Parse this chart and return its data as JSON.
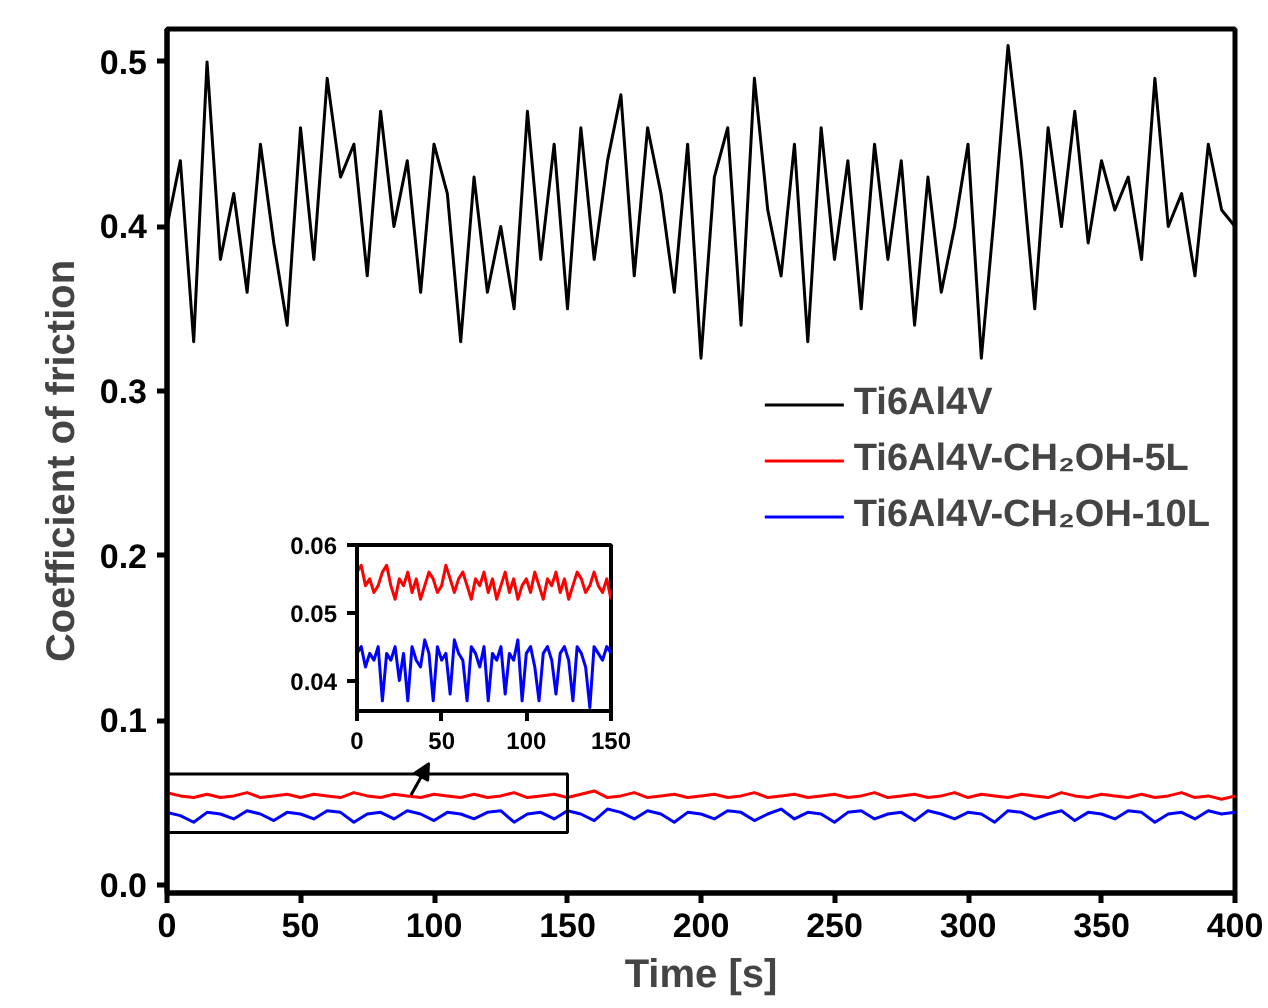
{
  "chart_data": [
    {
      "type": "line",
      "xlabel": "Time [s]",
      "ylabel": "Coefficient of friction",
      "xlim": [
        0,
        400
      ],
      "ylim": [
        -0.005,
        0.52
      ],
      "xticks": [
        0,
        50,
        100,
        150,
        200,
        250,
        300,
        350,
        400
      ],
      "yticks": [
        {
          "value": 0,
          "label": "0.0"
        },
        0.1,
        0.2,
        0.3,
        0.4,
        0.5
      ],
      "legend": "right",
      "x": [
        0,
        5,
        10,
        15,
        20,
        25,
        30,
        35,
        40,
        45,
        50,
        55,
        60,
        65,
        70,
        75,
        80,
        85,
        90,
        95,
        100,
        105,
        110,
        115,
        120,
        125,
        130,
        135,
        140,
        145,
        150,
        155,
        160,
        165,
        170,
        175,
        180,
        185,
        190,
        195,
        200,
        205,
        210,
        215,
        220,
        225,
        230,
        235,
        240,
        245,
        250,
        255,
        260,
        265,
        270,
        275,
        280,
        285,
        290,
        295,
        300,
        305,
        310,
        315,
        320,
        325,
        330,
        335,
        340,
        345,
        350,
        355,
        360,
        365,
        370,
        375,
        380,
        385,
        390,
        395,
        400
      ],
      "series": [
        {
          "name": "Ti6Al4V",
          "color": "#000000",
          "values": [
            0.4,
            0.44,
            0.33,
            0.5,
            0.38,
            0.42,
            0.36,
            0.45,
            0.39,
            0.34,
            0.46,
            0.38,
            0.49,
            0.43,
            0.45,
            0.37,
            0.47,
            0.4,
            0.44,
            0.36,
            0.45,
            0.42,
            0.33,
            0.43,
            0.36,
            0.4,
            0.35,
            0.47,
            0.38,
            0.45,
            0.35,
            0.46,
            0.38,
            0.44,
            0.48,
            0.37,
            0.46,
            0.42,
            0.36,
            0.45,
            0.32,
            0.43,
            0.46,
            0.34,
            0.49,
            0.41,
            0.37,
            0.45,
            0.33,
            0.46,
            0.38,
            0.44,
            0.35,
            0.45,
            0.38,
            0.44,
            0.34,
            0.43,
            0.36,
            0.4,
            0.45,
            0.32,
            0.41,
            0.51,
            0.44,
            0.35,
            0.46,
            0.4,
            0.47,
            0.39,
            0.44,
            0.41,
            0.43,
            0.38,
            0.49,
            0.4,
            0.42,
            0.37,
            0.45,
            0.41,
            0.4
          ]
        },
        {
          "name": "Ti6Al4V-CH₂OH-5L",
          "color": "#ff0000",
          "values": [
            0.056,
            0.054,
            0.053,
            0.055,
            0.053,
            0.054,
            0.056,
            0.053,
            0.054,
            0.055,
            0.053,
            0.055,
            0.054,
            0.053,
            0.056,
            0.054,
            0.053,
            0.055,
            0.054,
            0.053,
            0.055,
            0.054,
            0.053,
            0.055,
            0.053,
            0.054,
            0.056,
            0.053,
            0.054,
            0.055,
            0.053,
            0.055,
            0.057,
            0.053,
            0.054,
            0.056,
            0.053,
            0.054,
            0.055,
            0.053,
            0.054,
            0.055,
            0.053,
            0.054,
            0.056,
            0.053,
            0.054,
            0.055,
            0.053,
            0.054,
            0.055,
            0.053,
            0.054,
            0.056,
            0.053,
            0.054,
            0.055,
            0.053,
            0.054,
            0.056,
            0.053,
            0.055,
            0.054,
            0.053,
            0.055,
            0.054,
            0.053,
            0.056,
            0.054,
            0.053,
            0.055,
            0.054,
            0.053,
            0.055,
            0.053,
            0.054,
            0.056,
            0.053,
            0.054,
            0.052,
            0.054
          ]
        },
        {
          "name": "Ti6Al4V-CH₂OH-10L",
          "color": "#0000ff",
          "values": [
            0.044,
            0.042,
            0.038,
            0.044,
            0.043,
            0.04,
            0.045,
            0.043,
            0.039,
            0.044,
            0.043,
            0.04,
            0.045,
            0.044,
            0.038,
            0.043,
            0.044,
            0.04,
            0.045,
            0.043,
            0.039,
            0.044,
            0.043,
            0.04,
            0.044,
            0.045,
            0.038,
            0.043,
            0.044,
            0.04,
            0.045,
            0.043,
            0.039,
            0.046,
            0.044,
            0.04,
            0.045,
            0.043,
            0.038,
            0.044,
            0.043,
            0.04,
            0.045,
            0.044,
            0.039,
            0.043,
            0.046,
            0.04,
            0.044,
            0.043,
            0.038,
            0.044,
            0.045,
            0.04,
            0.043,
            0.044,
            0.039,
            0.045,
            0.043,
            0.04,
            0.044,
            0.043,
            0.038,
            0.045,
            0.044,
            0.04,
            0.043,
            0.045,
            0.039,
            0.044,
            0.043,
            0.04,
            0.045,
            0.044,
            0.038,
            0.043,
            0.044,
            0.04,
            0.045,
            0.043,
            0.044
          ]
        }
      ]
    },
    {
      "type": "line",
      "xlim": [
        0,
        150
      ],
      "ylim": [
        0.0355,
        0.06
      ],
      "xticks": [
        0,
        50,
        100,
        150
      ],
      "yticks": [
        0.04,
        0.05,
        0.06
      ],
      "x": [
        0,
        2.5,
        5,
        7.5,
        10,
        12.5,
        15,
        17.5,
        20,
        22.5,
        25,
        27.5,
        30,
        32.5,
        35,
        37.5,
        40,
        42.5,
        45,
        47.5,
        50,
        52.5,
        55,
        57.5,
        60,
        62.5,
        65,
        67.5,
        70,
        72.5,
        75,
        77.5,
        80,
        82.5,
        85,
        87.5,
        90,
        92.5,
        95,
        97.5,
        100,
        102.5,
        105,
        107.5,
        110,
        112.5,
        115,
        117.5,
        120,
        122.5,
        125,
        127.5,
        130,
        132.5,
        135,
        137.5,
        140,
        142.5,
        145,
        147.5,
        150
      ],
      "series": [
        {
          "color": "#ff0000",
          "values": [
            0.056,
            0.057,
            0.054,
            0.055,
            0.053,
            0.054,
            0.056,
            0.057,
            0.054,
            0.052,
            0.055,
            0.054,
            0.056,
            0.053,
            0.055,
            0.052,
            0.054,
            0.056,
            0.055,
            0.053,
            0.054,
            0.057,
            0.055,
            0.053,
            0.055,
            0.056,
            0.054,
            0.052,
            0.055,
            0.054,
            0.056,
            0.053,
            0.055,
            0.052,
            0.054,
            0.056,
            0.053,
            0.055,
            0.052,
            0.054,
            0.055,
            0.053,
            0.056,
            0.054,
            0.052,
            0.055,
            0.054,
            0.056,
            0.053,
            0.055,
            0.052,
            0.054,
            0.056,
            0.055,
            0.053,
            0.054,
            0.056,
            0.054,
            0.053,
            0.055,
            0.052
          ]
        },
        {
          "color": "#0000ff",
          "values": [
            0.044,
            0.045,
            0.042,
            0.044,
            0.043,
            0.045,
            0.037,
            0.044,
            0.043,
            0.045,
            0.04,
            0.044,
            0.037,
            0.045,
            0.043,
            0.042,
            0.046,
            0.044,
            0.037,
            0.045,
            0.043,
            0.044,
            0.038,
            0.046,
            0.044,
            0.043,
            0.037,
            0.045,
            0.044,
            0.042,
            0.045,
            0.037,
            0.044,
            0.043,
            0.045,
            0.038,
            0.044,
            0.043,
            0.046,
            0.037,
            0.044,
            0.045,
            0.042,
            0.037,
            0.044,
            0.045,
            0.043,
            0.038,
            0.044,
            0.045,
            0.043,
            0.037,
            0.045,
            0.044,
            0.042,
            0.036,
            0.045,
            0.044,
            0.043,
            0.045,
            0.044
          ]
        }
      ]
    }
  ]
}
